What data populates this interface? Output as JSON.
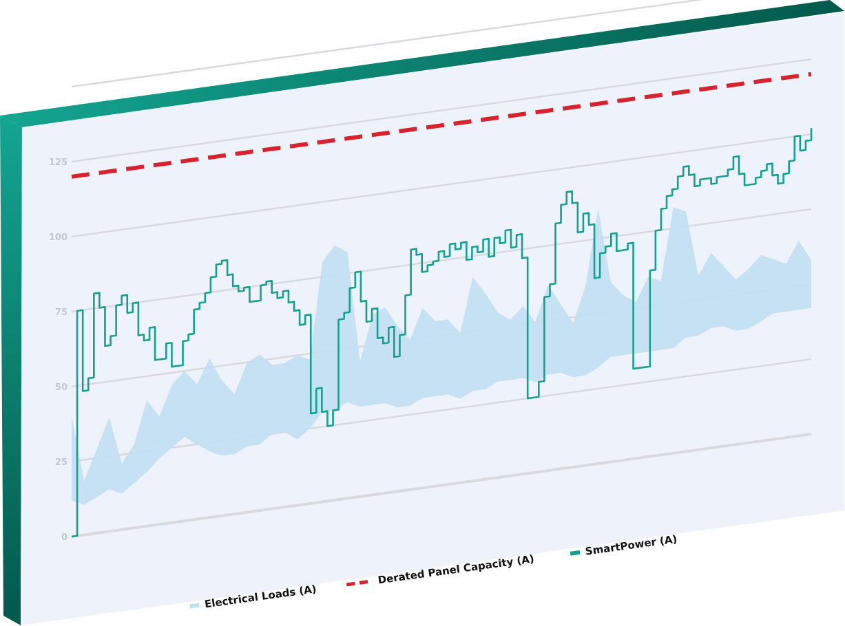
{
  "chart_data": {
    "type": "line",
    "title": "",
    "xlabel": "",
    "ylabel": "",
    "ylim": [
      0,
      150
    ],
    "yticks": [
      0,
      25,
      50,
      75,
      100,
      125
    ],
    "grid": true,
    "legend_position": "bottom",
    "colors": {
      "loads": "#c3dff2",
      "capacity": "#d7232d",
      "smartpower": "#14a08e",
      "frame_light": "#14a591",
      "frame_dark": "#03594c",
      "panel_bg": "#eef2fb",
      "grid": "#d9dadf"
    },
    "series": [
      {
        "name": "Electrical Loads (A)",
        "type": "band",
        "samples": 60,
        "upper": [
          40,
          18,
          28,
          38,
          22,
          28,
          42,
          36,
          46,
          50,
          45,
          53,
          45,
          40,
          50,
          52,
          48,
          48,
          50,
          48,
          80,
          85,
          82,
          45,
          60,
          62,
          55,
          50,
          60,
          55,
          55,
          50,
          68,
          62,
          55,
          52,
          56,
          50,
          62,
          55,
          48,
          60,
          85,
          60,
          55,
          52,
          60,
          58,
          82,
          80,
          58,
          65,
          60,
          55,
          58,
          62,
          60,
          58,
          65,
          58
        ],
        "lower": [
          12,
          10,
          12,
          14,
          12,
          15,
          18,
          22,
          25,
          28,
          25,
          22,
          20,
          20,
          22,
          22,
          25,
          25,
          22,
          25,
          30,
          30,
          32,
          30,
          30,
          30,
          28,
          28,
          30,
          30,
          30,
          28,
          30,
          30,
          32,
          32,
          32,
          30,
          32,
          32,
          30,
          30,
          32,
          35,
          35,
          35,
          35,
          35,
          35,
          38,
          38,
          40,
          40,
          38,
          38,
          40,
          42,
          42,
          42,
          42
        ]
      },
      {
        "name": "Derated Panel Capacity (A)",
        "type": "line",
        "dashed": true,
        "values": [
          120,
          120
        ]
      },
      {
        "name": "SmartPower (A)",
        "type": "line",
        "step": true,
        "values": [
          0,
          75,
          48,
          52,
          80,
          75,
          62,
          65,
          75,
          78,
          72,
          75,
          64,
          62,
          66,
          55,
          55,
          60,
          52,
          52,
          60,
          62,
          70,
          72,
          75,
          80,
          84,
          85,
          80,
          76,
          74,
          75,
          70,
          70,
          75,
          76,
          72,
          70,
          72,
          68,
          65,
          60,
          63,
          30,
          38,
          30,
          25,
          30,
          60,
          62,
          70,
          75,
          65,
          58,
          62,
          52,
          50,
          55,
          45,
          52,
          65,
          80,
          78,
          72,
          74,
          75,
          78,
          76,
          80,
          78,
          80,
          74,
          78,
          76,
          80,
          74,
          80,
          78,
          82,
          76,
          80,
          72,
          25,
          25,
          30,
          58,
          62,
          82,
          88,
          92,
          88,
          78,
          84,
          80,
          62,
          70,
          72,
          76,
          70,
          70,
          72,
          30,
          30,
          30,
          62,
          75,
          82,
          86,
          88,
          92,
          95,
          92,
          88,
          90,
          90,
          88,
          90,
          90,
          92,
          96,
          90,
          86,
          86,
          88,
          90,
          92,
          88,
          85,
          88,
          92,
          100,
          95,
          98,
          102
        ]
      }
    ]
  }
}
